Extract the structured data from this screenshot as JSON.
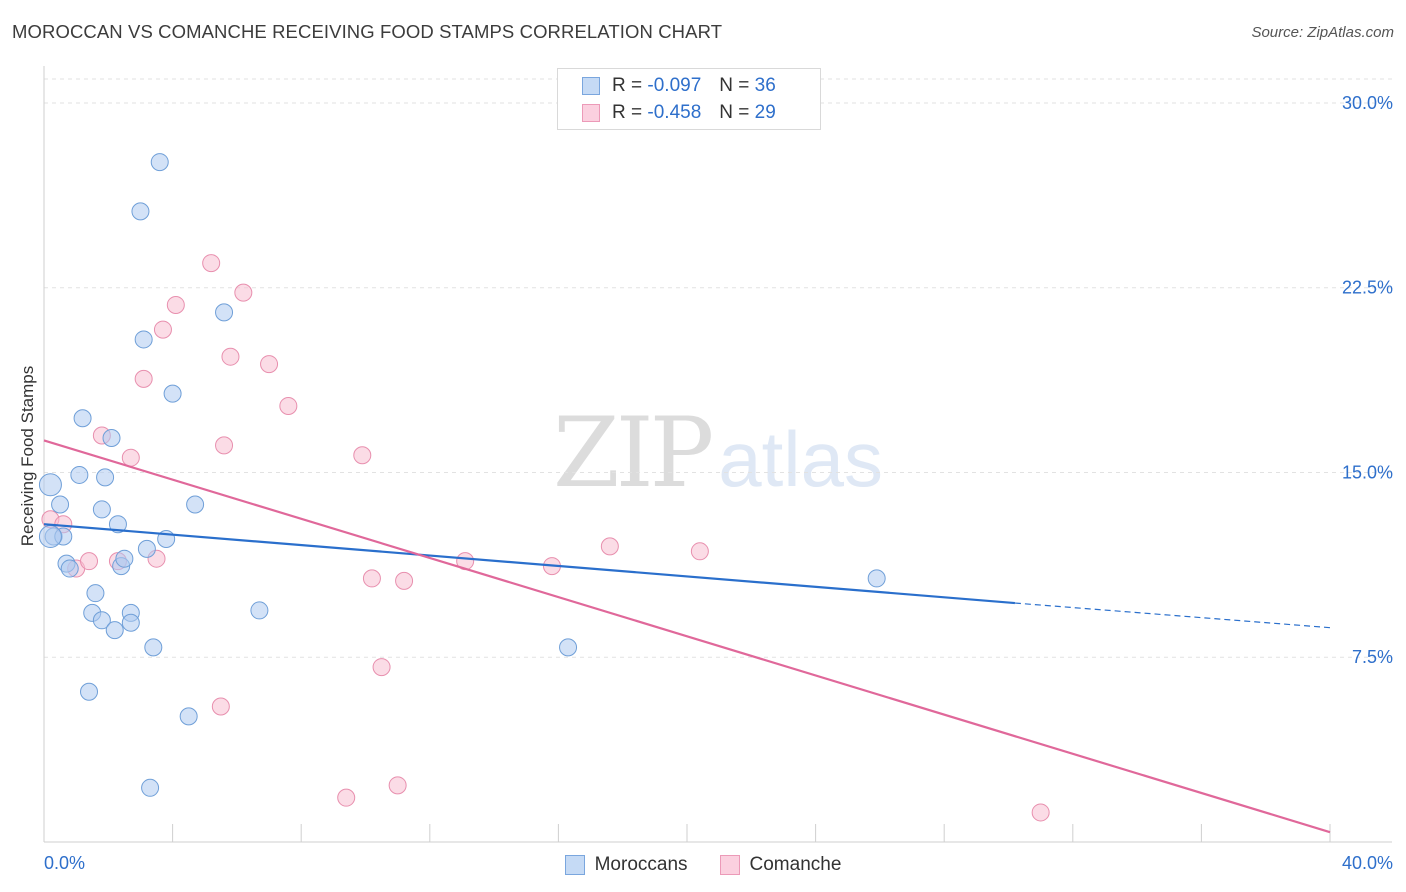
{
  "header": {
    "title": "MOROCCAN VS COMANCHE RECEIVING FOOD STAMPS CORRELATION CHART",
    "source": "Source: ZipAtlas.com"
  },
  "watermark": {
    "zip": "ZIP",
    "atlas": "atlas"
  },
  "legend": {
    "rows": [
      {
        "r_label": "R = ",
        "r_value": "-0.097",
        "n_label": "N = ",
        "n_value": "36"
      },
      {
        "r_label": "R = ",
        "r_value": "-0.458",
        "n_label": "N = ",
        "n_value": "29"
      }
    ]
  },
  "bottom_legend": {
    "moroccans": "Moroccans",
    "comanche": "Comanche"
  },
  "colors": {
    "blue_fill": "#aecbf0",
    "blue_stroke": "#6f9fd8",
    "blue_line": "#2a6fcc",
    "pink_fill": "#f7bfd1",
    "pink_stroke": "#e88fae",
    "pink_line": "#e0689a",
    "tick_label": "#2e6fcb",
    "grid": "#e2e2e2"
  },
  "chart_data": {
    "type": "scatter",
    "title": "MOROCCAN VS COMANCHE RECEIVING FOOD STAMPS CORRELATION CHART",
    "xlabel": "",
    "ylabel": "Receiving Food Stamps",
    "xlim": [
      0,
      40
    ],
    "ylim": [
      0,
      31.5
    ],
    "x_tick_labels": [
      "0.0%",
      "40.0%"
    ],
    "y_ticks": [
      7.5,
      15.0,
      22.5,
      30.0
    ],
    "y_tick_labels": [
      "7.5%",
      "15.0%",
      "22.5%",
      "30.0%"
    ],
    "grid": true,
    "series": [
      {
        "name": "Moroccans",
        "r": -0.097,
        "n": 36,
        "points": [
          [
            0.2,
            14.5
          ],
          [
            0.3,
            12.4
          ],
          [
            0.5,
            13.7
          ],
          [
            0.6,
            12.4
          ],
          [
            0.7,
            11.3
          ],
          [
            0.8,
            11.1
          ],
          [
            1.1,
            14.9
          ],
          [
            1.2,
            17.2
          ],
          [
            1.4,
            6.1
          ],
          [
            1.5,
            9.3
          ],
          [
            1.6,
            10.1
          ],
          [
            1.8,
            9.0
          ],
          [
            1.8,
            13.5
          ],
          [
            1.9,
            14.8
          ],
          [
            2.1,
            16.4
          ],
          [
            2.2,
            8.6
          ],
          [
            2.3,
            12.9
          ],
          [
            2.4,
            11.2
          ],
          [
            2.5,
            11.5
          ],
          [
            2.7,
            9.3
          ],
          [
            2.7,
            8.9
          ],
          [
            3.0,
            25.6
          ],
          [
            3.1,
            20.4
          ],
          [
            3.2,
            11.9
          ],
          [
            3.3,
            2.2
          ],
          [
            3.4,
            7.9
          ],
          [
            3.6,
            27.6
          ],
          [
            3.8,
            12.3
          ],
          [
            4.0,
            18.2
          ],
          [
            4.5,
            5.1
          ],
          [
            4.7,
            13.7
          ],
          [
            5.6,
            21.5
          ],
          [
            6.7,
            9.4
          ],
          [
            16.3,
            7.9
          ],
          [
            25.9,
            10.7
          ],
          [
            0.2,
            12.4
          ]
        ],
        "trend": {
          "x_start": 0,
          "y_start": 12.9,
          "x_end": 30.2,
          "y_end": 9.7,
          "dashed_to_x": 40,
          "dashed_end_y": 8.7
        }
      },
      {
        "name": "Comanche",
        "r": -0.458,
        "n": 29,
        "points": [
          [
            0.2,
            13.1
          ],
          [
            0.6,
            12.9
          ],
          [
            1.0,
            11.1
          ],
          [
            1.4,
            11.4
          ],
          [
            1.8,
            16.5
          ],
          [
            2.3,
            11.4
          ],
          [
            2.7,
            15.6
          ],
          [
            3.1,
            18.8
          ],
          [
            3.5,
            11.5
          ],
          [
            3.7,
            20.8
          ],
          [
            4.1,
            21.8
          ],
          [
            5.2,
            23.5
          ],
          [
            5.5,
            5.5
          ],
          [
            5.6,
            16.1
          ],
          [
            5.8,
            19.7
          ],
          [
            6.2,
            22.3
          ],
          [
            7.0,
            19.4
          ],
          [
            7.6,
            17.7
          ],
          [
            9.4,
            1.8
          ],
          [
            9.9,
            15.7
          ],
          [
            10.2,
            10.7
          ],
          [
            10.5,
            7.1
          ],
          [
            11.0,
            2.3
          ],
          [
            11.2,
            10.6
          ],
          [
            13.1,
            11.4
          ],
          [
            15.8,
            11.2
          ],
          [
            17.6,
            12.0
          ],
          [
            20.4,
            11.8
          ],
          [
            31.0,
            1.2
          ]
        ],
        "trend": {
          "x_start": 0,
          "y_start": 16.3,
          "x_end": 40,
          "y_end": 0.4
        }
      }
    ]
  }
}
